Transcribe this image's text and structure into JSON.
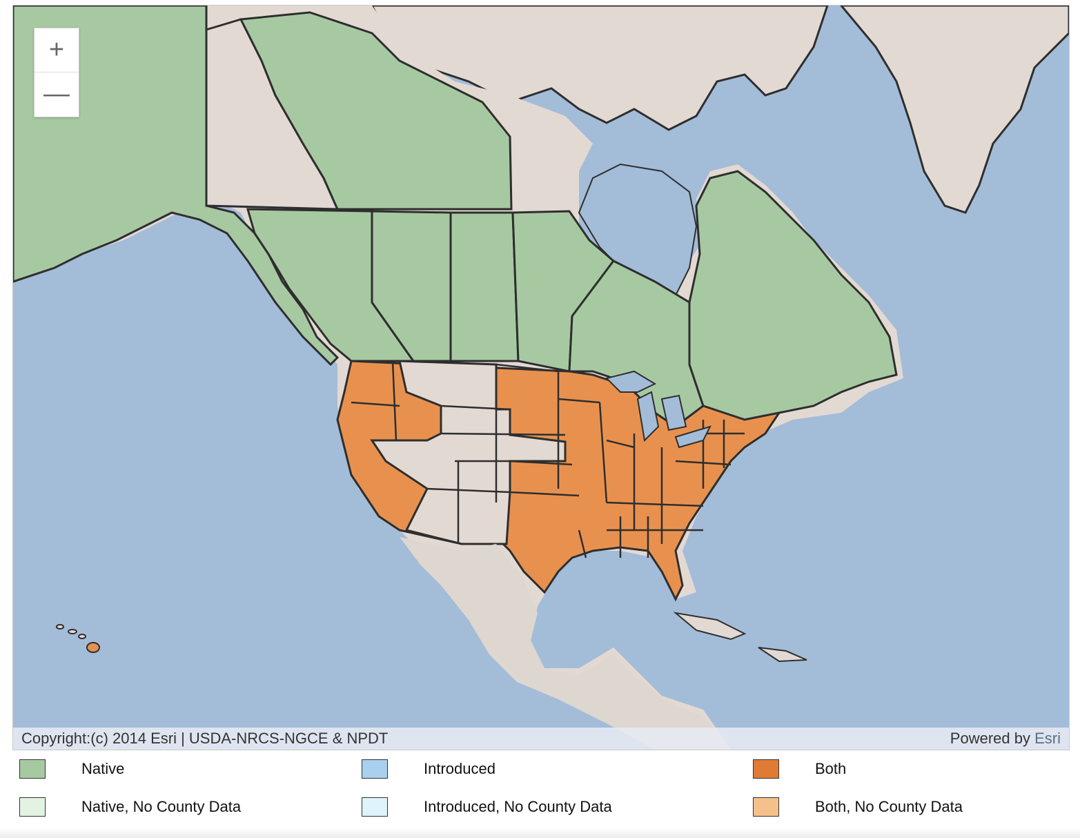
{
  "map": {
    "zoom_in_label": "+",
    "zoom_out_label": "—",
    "copyright": "Copyright:(c) 2014 Esri | USDA-NRCS-NGCE & NPDT",
    "powered_by": "Powered by",
    "powered_by_brand": "Esri",
    "colors": {
      "water": "#a3bcd8",
      "land": "#e3d9d3",
      "native": "#a7c9a2",
      "both": "#e8914f",
      "border": "#2e2e2e"
    }
  },
  "legend": [
    {
      "label": "Native",
      "color": "#a7c9a2"
    },
    {
      "label": "Introduced",
      "color": "#a9d0ef"
    },
    {
      "label": "Both",
      "color": "#e07b33"
    },
    {
      "label": "Native, No County Data",
      "color": "#e3f3e3"
    },
    {
      "label": "Introduced, No County Data",
      "color": "#def3fb"
    },
    {
      "label": "Both, No County Data",
      "color": "#f5c18b"
    }
  ]
}
